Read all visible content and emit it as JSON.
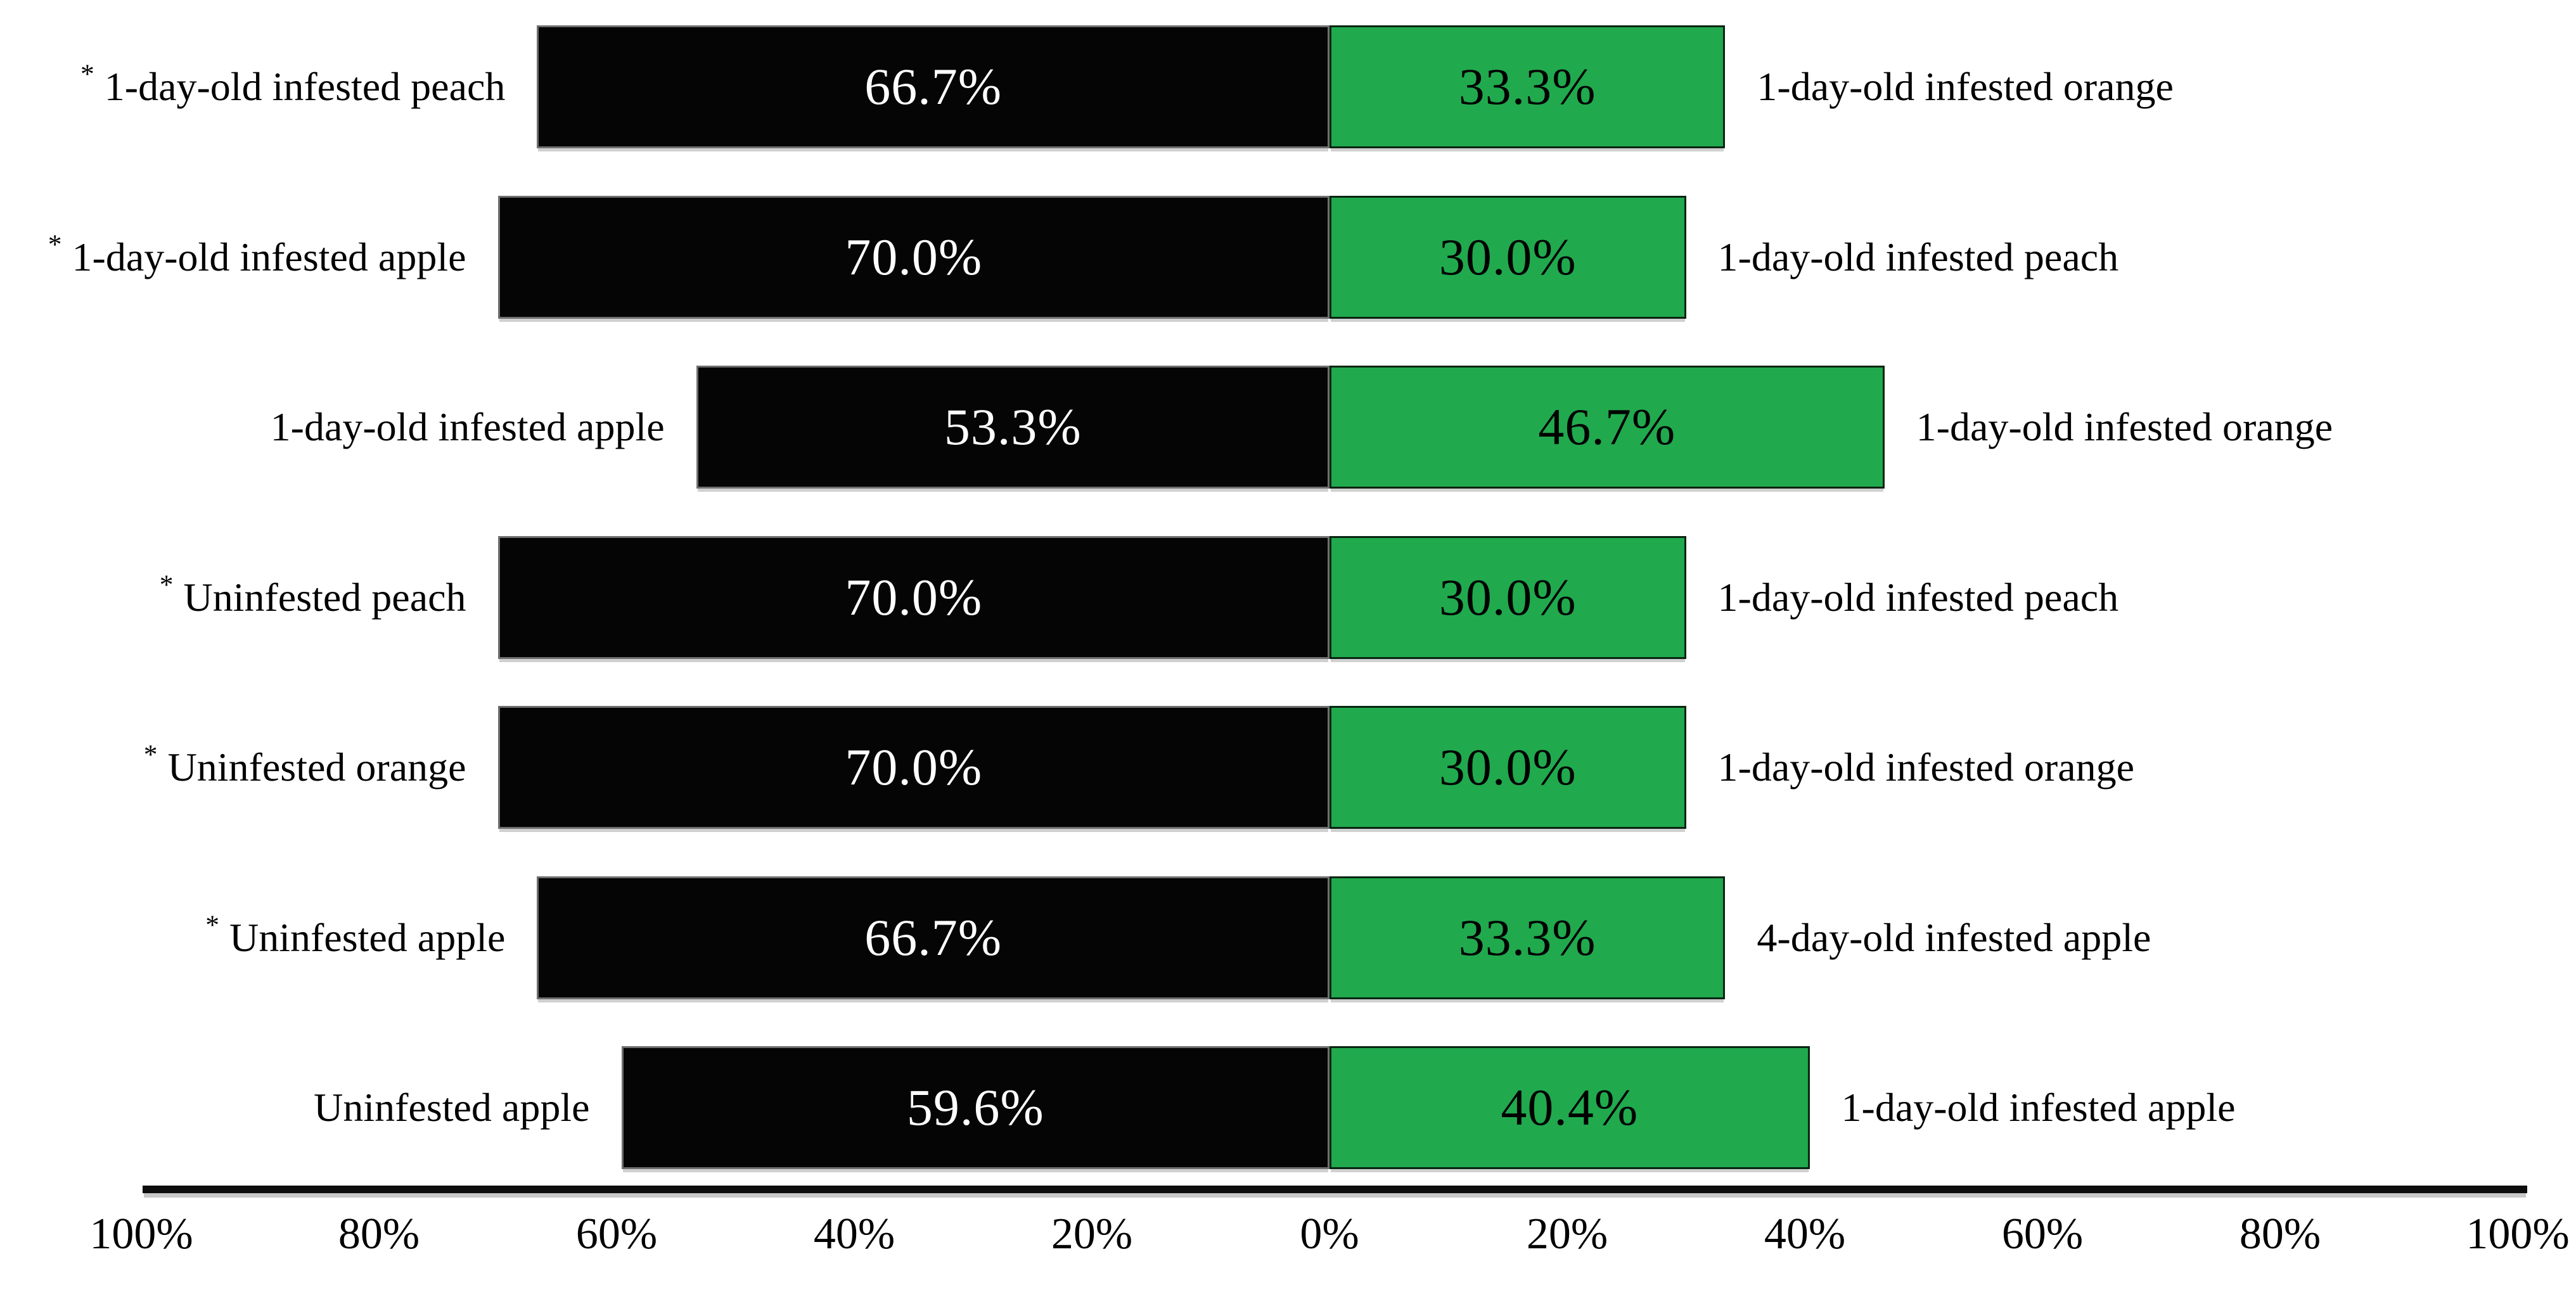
{
  "chart_data": {
    "type": "bar",
    "subtype": "diverging-stacked-horizontal",
    "title": "",
    "unit": "%",
    "star_symbol": "*",
    "legend_position": "none",
    "grid": false,
    "axis": {
      "tick_labels": [
        "100%",
        "80%",
        "60%",
        "40%",
        "20%",
        "0%",
        "20%",
        "40%",
        "60%",
        "80%",
        "100%"
      ],
      "tick_values": [
        -100,
        -80,
        -60,
        -40,
        -20,
        0,
        20,
        40,
        60,
        80,
        100
      ],
      "xlim": [
        -100,
        100
      ]
    },
    "series": [
      {
        "name": "left-choice",
        "color": "#050505",
        "text_color": "#ffffff"
      },
      {
        "name": "right-choice",
        "color": "#21a94d",
        "text_color": "#000000"
      }
    ],
    "rows": [
      {
        "starred": true,
        "left_label": "1-day-old infested peach",
        "left_value": 66.7,
        "left_value_label": "66.7%",
        "right_value": 33.3,
        "right_value_label": "33.3%",
        "right_label": "1-day-old infested orange"
      },
      {
        "starred": true,
        "left_label": "1-day-old infested apple",
        "left_value": 70.0,
        "left_value_label": "70.0%",
        "right_value": 30.0,
        "right_value_label": "30.0%",
        "right_label": "1-day-old infested peach"
      },
      {
        "starred": false,
        "left_label": "1-day-old infested apple",
        "left_value": 53.3,
        "left_value_label": "53.3%",
        "right_value": 46.7,
        "right_value_label": "46.7%",
        "right_label": "1-day-old infested orange"
      },
      {
        "starred": true,
        "left_label": "Uninfested peach",
        "left_value": 70.0,
        "left_value_label": "70.0%",
        "right_value": 30.0,
        "right_value_label": "30.0%",
        "right_label": "1-day-old infested peach"
      },
      {
        "starred": true,
        "left_label": "Uninfested orange",
        "left_value": 70.0,
        "left_value_label": "70.0%",
        "right_value": 30.0,
        "right_value_label": "30.0%",
        "right_label": "1-day-old infested orange"
      },
      {
        "starred": true,
        "left_label": "Uninfested apple",
        "left_value": 66.7,
        "left_value_label": "66.7%",
        "right_value": 33.3,
        "right_value_label": "33.3%",
        "right_label": "4-day-old infested apple"
      },
      {
        "starred": false,
        "left_label": "Uninfested apple",
        "left_value": 59.6,
        "left_value_label": "59.6%",
        "right_value": 40.4,
        "right_value_label": "40.4%",
        "right_label": "1-day-old infested apple"
      }
    ]
  }
}
